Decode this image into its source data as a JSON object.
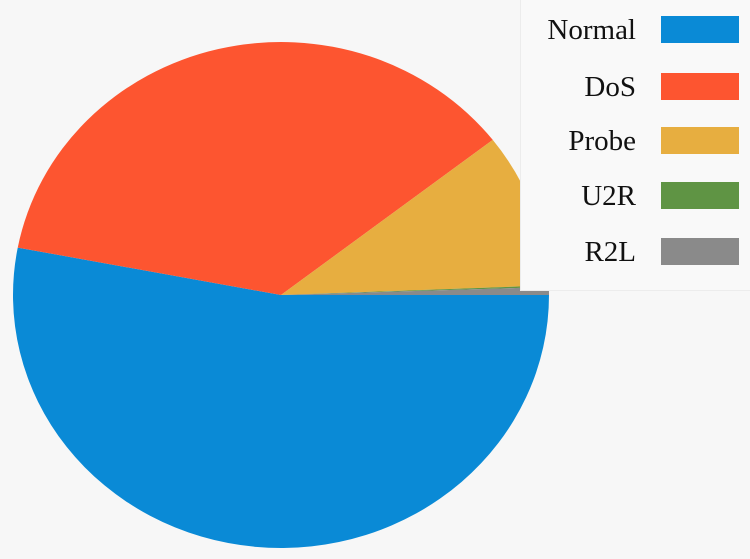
{
  "chart_data": {
    "type": "pie",
    "title": "",
    "slices": [
      {
        "label": "Normal",
        "value": 53.0,
        "color": "#0a8ad6"
      },
      {
        "label": "DoS",
        "value": 36.5,
        "color": "#fd5530"
      },
      {
        "label": "Probe",
        "value": 9.9,
        "color": "#e7ae40"
      },
      {
        "label": "U2R",
        "value": 0.1,
        "color": "#5f9444"
      },
      {
        "label": "R2L",
        "value": 0.5,
        "color": "#8a8a8a"
      }
    ],
    "legend_position": "top-right",
    "start_angle_deg": 0,
    "direction": "clockwise-from-right"
  }
}
